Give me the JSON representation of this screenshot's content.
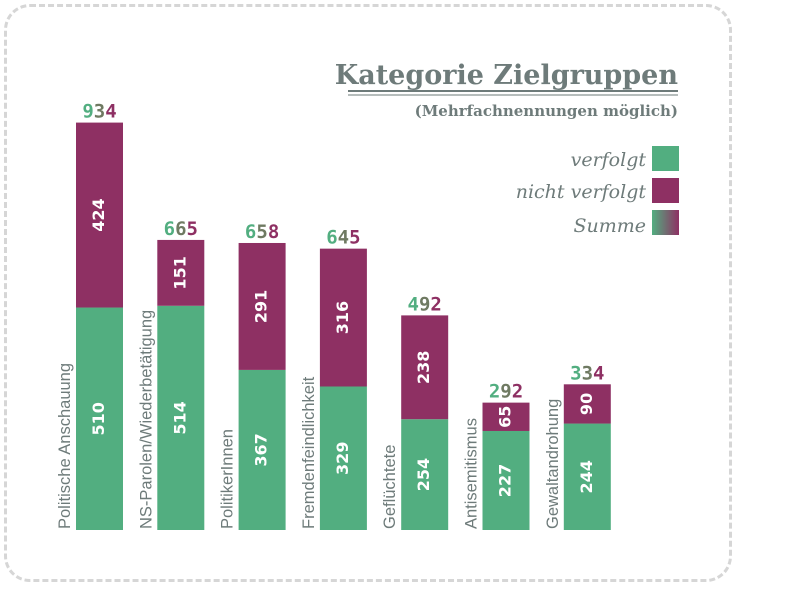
{
  "chart_data": {
    "type": "bar",
    "stacked": true,
    "title": "Kategorie Zielgruppen",
    "subtitle": "(Mehrfachnennungen möglich)",
    "categories": [
      "Politische Anschauung",
      "NS-Parolen/Wiederbetätigung",
      "PolitikerInnen",
      "Fremdenfeindlichkeit",
      "Geflüchtete",
      "Antisemitismus",
      "Gewaltandrohung"
    ],
    "series": [
      {
        "name": "verfolgt",
        "color": "#52ae80",
        "values": [
          510,
          514,
          367,
          329,
          254,
          227,
          244
        ]
      },
      {
        "name": "nicht verfolgt",
        "color": "#8e3063",
        "values": [
          424,
          151,
          291,
          316,
          238,
          65,
          90
        ]
      }
    ],
    "totals": [
      934,
      665,
      658,
      645,
      492,
      292,
      334
    ],
    "legend": [
      {
        "label": "verfolgt",
        "swatch": "green"
      },
      {
        "label": "nicht verfolgt",
        "swatch": "purple"
      },
      {
        "label": "Summe",
        "swatch": "gradient"
      }
    ],
    "ylim": [
      0,
      950
    ],
    "grid": false,
    "legend_position": "top-right",
    "colors": {
      "verfolgt": "#52ae80",
      "nicht_verfolgt": "#8e3063",
      "text": "#6e7b7a"
    }
  }
}
